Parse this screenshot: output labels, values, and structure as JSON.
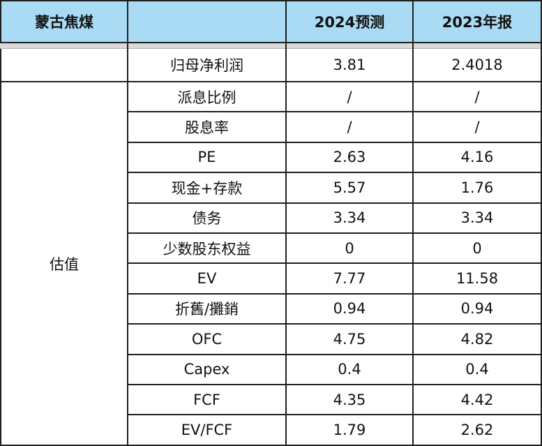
{
  "header": {
    "company": "蒙古焦煤",
    "col_metric": "",
    "col_2024": "2024预测",
    "col_2023": "2023年报"
  },
  "rows": [
    {
      "group": "",
      "metric": "归母净利润",
      "v2024": "3.81",
      "v2023": "2.4018"
    },
    {
      "group": "估值",
      "metric": "派息比例",
      "v2024": "/",
      "v2023": "/"
    },
    {
      "group": "",
      "metric": "股息率",
      "v2024": "/",
      "v2023": "/"
    },
    {
      "group": "",
      "metric": "PE",
      "v2024": "2.63",
      "v2023": "4.16"
    },
    {
      "group": "",
      "metric": "现金+存款",
      "v2024": "5.57",
      "v2023": "1.76"
    },
    {
      "group": "",
      "metric": "债务",
      "v2024": "3.34",
      "v2023": "3.34"
    },
    {
      "group": "",
      "metric": "少数股东权益",
      "v2024": "0",
      "v2023": "0"
    },
    {
      "group": "",
      "metric": "EV",
      "v2024": "7.77",
      "v2023": "11.58"
    },
    {
      "group": "",
      "metric": "折舊/攤銷",
      "v2024": "0.94",
      "v2023": "0.94"
    },
    {
      "group": "",
      "metric": "OFC",
      "v2024": "4.75",
      "v2023": "4.82"
    },
    {
      "group": "",
      "metric": "Capex",
      "v2024": "0.4",
      "v2023": "0.4"
    },
    {
      "group": "",
      "metric": "FCF",
      "v2024": "4.35",
      "v2023": "4.42"
    },
    {
      "group": "",
      "metric": "EV/FCF",
      "v2024": "1.79",
      "v2023": "2.62"
    }
  ],
  "merged_group_label": "估值",
  "colors": {
    "header_bg": "#a9dbf4",
    "border": "#1f1f1f",
    "band": "#d9d9d9"
  }
}
